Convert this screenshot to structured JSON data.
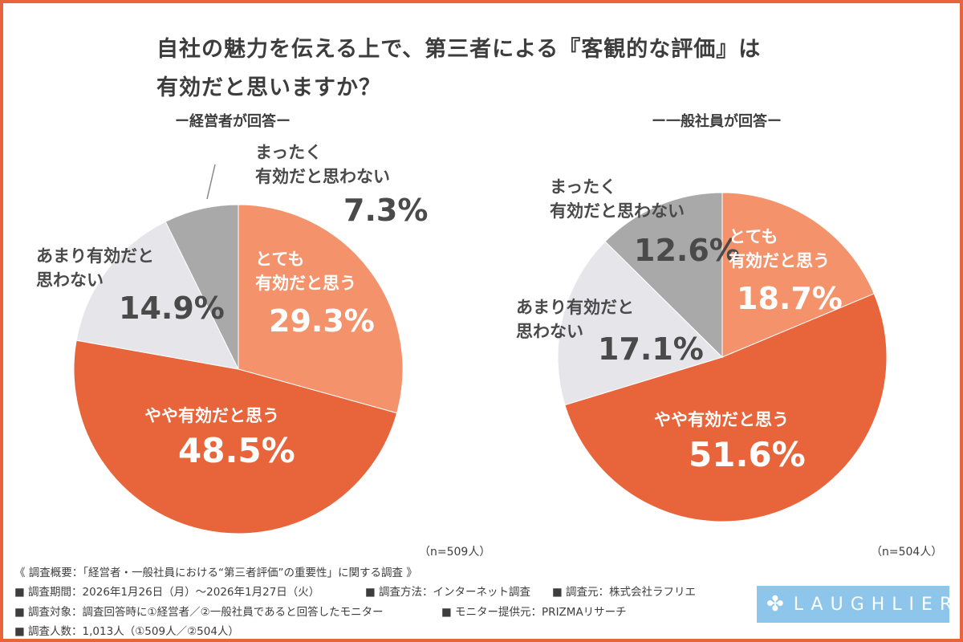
{
  "title_line1": "自社の魅力を伝える上で、第三者による『客観的な評価』は",
  "title_line2": "有効だと思いますか？",
  "colors": {
    "frame": "#E8643A",
    "very": "#F4936B",
    "somewhat": "#E8643A",
    "not_much": "#E6E6EA",
    "not_at_all": "#A9A9A9"
  },
  "chart_data": [
    {
      "type": "pie",
      "title": "ー経営者が回答ー",
      "n_label": "（n=509人）",
      "start": "12 o'clock",
      "direction": "clockwise",
      "slices": [
        {
          "label_l1": "とても",
          "label_l2": "有効だと思う",
          "value": 29.3,
          "pct": "29.3%"
        },
        {
          "label_l1": "やや有効だと思う",
          "label_l2": "",
          "value": 48.5,
          "pct": "48.5%"
        },
        {
          "label_l1": "あまり有効だと",
          "label_l2": "思わない",
          "value": 14.9,
          "pct": "14.9%"
        },
        {
          "label_l1": "まったく",
          "label_l2": "有効だと思わない",
          "value": 7.3,
          "pct": "7.3%"
        }
      ]
    },
    {
      "type": "pie",
      "title": "ー一般社員が回答ー",
      "n_label": "（n=504人）",
      "start": "12 o'clock",
      "direction": "clockwise",
      "slices": [
        {
          "label_l1": "とても",
          "label_l2": "有効だと思う",
          "value": 18.7,
          "pct": "18.7%"
        },
        {
          "label_l1": "やや有効だと思う",
          "label_l2": "",
          "value": 51.6,
          "pct": "51.6%"
        },
        {
          "label_l1": "あまり有効だと",
          "label_l2": "思わない",
          "value": 17.1,
          "pct": "17.1%"
        },
        {
          "label_l1": "まったく",
          "label_l2": "有効だと思わない",
          "value": 12.6,
          "pct": "12.6%"
        }
      ]
    }
  ],
  "footer": {
    "summary": "《 調査概要：「経営者・一般社員における“第三者評価”の重要性」に関する調査 》",
    "period": "■ 調査期間：2026年1月26日（月）～2026年1月27日（火）",
    "method": "■ 調査方法：インターネット調査",
    "source": "■ 調査元：株式会社ラフリエ",
    "target": "■ 調査対象：調査回答時に①経営者／②一般社員であると回答したモニター",
    "provider": "■ モニター提供元：PRIZMAリサーチ",
    "count": "■ 調査人数：1,013人（①509人／②504人）"
  },
  "logo": "LAUGHLIER"
}
